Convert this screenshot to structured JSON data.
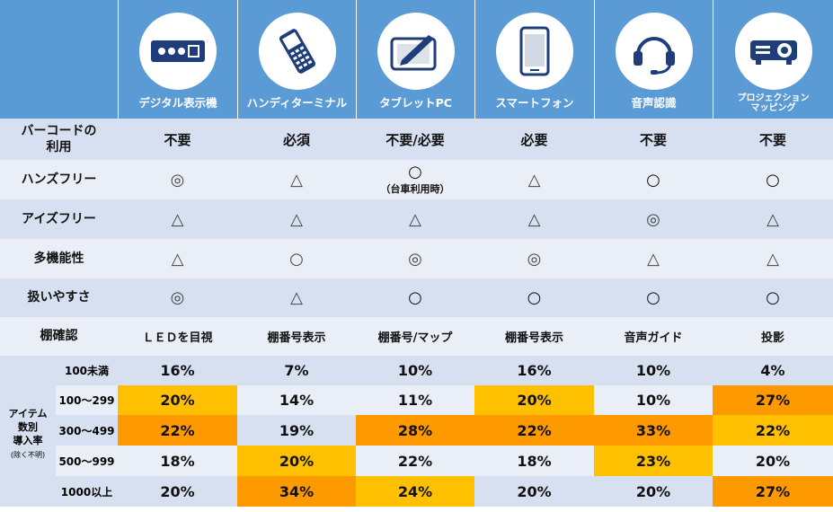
{
  "devices": [
    {
      "label": "デジタル表示機",
      "icon": "digital-display-icon"
    },
    {
      "label": "ハンディターミナル",
      "icon": "handy-terminal-icon"
    },
    {
      "label": "タブレットPC",
      "icon": "tablet-pen-icon"
    },
    {
      "label": "スマートフォン",
      "icon": "smartphone-icon"
    },
    {
      "label": "音声認識",
      "icon": "headset-icon"
    },
    {
      "label": "プロジェクション\nマッピング",
      "icon": "projector-icon"
    }
  ],
  "rows": {
    "barcode": {
      "label": "バーコードの\n利用",
      "values": [
        "不要",
        "必須",
        "不要/必要",
        "必要",
        "不要",
        "不要"
      ]
    },
    "handsfree": {
      "label": "ハンズフリー",
      "values": [
        "◎",
        "△",
        "○",
        "△",
        "○",
        "○"
      ],
      "note": "（台車利用時）"
    },
    "eyesfree": {
      "label": "アイズフリー",
      "values": [
        "△",
        "△",
        "△",
        "△",
        "◎",
        "△"
      ]
    },
    "multifunction": {
      "label": "多機能性",
      "values": [
        "△",
        "○",
        "◎",
        "◎",
        "△",
        "△"
      ]
    },
    "ease": {
      "label": "扱いやすさ",
      "values": [
        "◎",
        "△",
        "○",
        "○",
        "○",
        "○"
      ]
    },
    "shelf": {
      "label": "棚確認",
      "values": [
        "ＬＥＤを目視",
        "棚番号表示",
        "棚番号/マップ",
        "棚番号表示",
        "音声ガイド",
        "投影"
      ]
    }
  },
  "adoption": {
    "label": "アイテム\n数別\n導入率",
    "sublabel": "(除く不明)",
    "ranges": [
      {
        "label": "100未満",
        "values": [
          "16%",
          "7%",
          "10%",
          "16%",
          "10%",
          "4%"
        ]
      },
      {
        "label": "100～299",
        "values": [
          "20%",
          "14%",
          "11%",
          "20%",
          "10%",
          "27%"
        ]
      },
      {
        "label": "300～499",
        "values": [
          "22%",
          "19%",
          "28%",
          "22%",
          "33%",
          "22%"
        ]
      },
      {
        "label": "500～999",
        "values": [
          "18%",
          "20%",
          "22%",
          "18%",
          "23%",
          "20%"
        ]
      },
      {
        "label": "1000以上",
        "values": [
          "20%",
          "34%",
          "24%",
          "20%",
          "20%",
          "27%"
        ]
      }
    ]
  },
  "colors": {
    "header": "#5b9bd5",
    "highlight_light": "#ffc000",
    "highlight_dark": "#ff9900",
    "row_dark": "#d6e0f0",
    "row_light": "#eaeff7"
  }
}
